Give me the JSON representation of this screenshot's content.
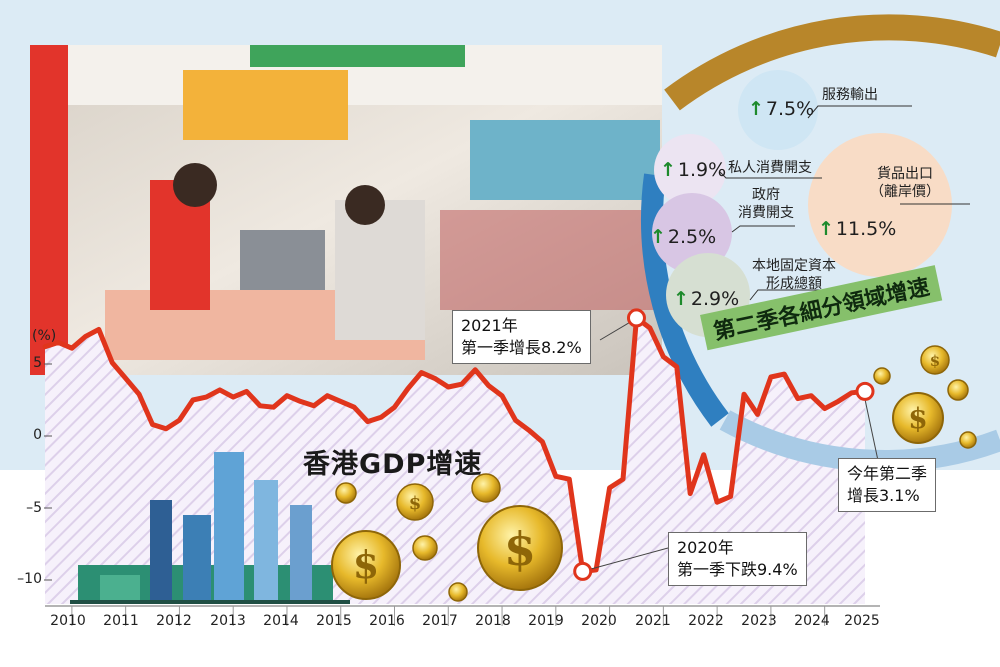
{
  "chart_data": {
    "type": "line",
    "title": "香港GDP增速",
    "ylabel": "(%)",
    "ylim": [
      -11,
      7
    ],
    "yticks": [
      5,
      0,
      -5,
      -10
    ],
    "ytick_labels": [
      "5",
      "0",
      "–5",
      "–10"
    ],
    "xtick_labels": [
      "2010",
      "2011",
      "2012",
      "2013",
      "2014",
      "2015",
      "2016",
      "2017",
      "2018",
      "2019",
      "2020",
      "2021",
      "2022",
      "2023",
      "2024",
      "2025"
    ],
    "line_color": "#e0351c",
    "grid": false,
    "series": [
      {
        "x": [
          2010.0,
          2010.25,
          2010.5,
          2010.75,
          2011.0,
          2011.25,
          2011.5,
          2011.75,
          2012.0,
          2012.25,
          2012.5,
          2012.75,
          2013.0,
          2013.25,
          2013.5,
          2013.75,
          2014.0,
          2014.25,
          2014.5,
          2014.75,
          2015.0,
          2015.25,
          2015.5,
          2015.75,
          2016.0,
          2016.25,
          2016.5,
          2016.75,
          2017.0,
          2017.25,
          2017.5,
          2017.75,
          2018.0,
          2018.25,
          2018.5,
          2018.75,
          2019.0,
          2019.25,
          2019.5,
          2019.75,
          2020.0,
          2020.25,
          2020.5,
          2020.75,
          2021.0,
          2021.25,
          2021.5,
          2021.75,
          2022.0,
          2022.25,
          2022.5,
          2022.75,
          2023.0,
          2023.25,
          2023.5,
          2023.75,
          2024.0,
          2024.25,
          2024.5,
          2024.75,
          2025.0,
          2025.25
        ],
        "values": [
          6.2,
          6.5,
          6.1,
          6.9,
          7.4,
          5.1,
          4.0,
          2.9,
          0.8,
          0.5,
          1.1,
          2.5,
          2.7,
          3.2,
          2.7,
          3.1,
          2.1,
          2.0,
          2.8,
          2.4,
          2.1,
          2.8,
          2.4,
          2.0,
          1.0,
          1.3,
          2.0,
          3.3,
          4.4,
          4.0,
          3.4,
          3.6,
          4.6,
          3.5,
          2.8,
          1.1,
          0.4,
          -0.4,
          -2.8,
          -3.0,
          -9.4,
          -9.3,
          -3.6,
          -3.0,
          8.2,
          7.5,
          5.5,
          4.8,
          -4.0,
          -1.3,
          -4.6,
          -4.2,
          2.9,
          1.5,
          4.1,
          4.3,
          2.6,
          2.8,
          1.9,
          2.4,
          3.0,
          3.1
        ]
      }
    ],
    "highlights": [
      {
        "x": 2021.0,
        "value": 8.2
      },
      {
        "x": 2020.0,
        "value": -9.4
      },
      {
        "x": 2025.25,
        "value": 3.1
      }
    ]
  },
  "annotations": {
    "peak2021": [
      "2021年",
      "第一季增長8.2%"
    ],
    "trough2020": [
      "2020年",
      "第一季下跌9.4%"
    ],
    "latest2025": [
      "今年第二季",
      "增長3.1%"
    ]
  },
  "sectors": {
    "title": "第二季各細分領域增速",
    "items": [
      {
        "name": "服務輸出",
        "value": "7.5%",
        "color": "#cfe6f4"
      },
      {
        "name": "私人消費開支",
        "value": "1.9%",
        "color": "#ece4f2"
      },
      {
        "name": "政府\n消費開支",
        "value": "2.5%",
        "color": "#d8c6e4"
      },
      {
        "name": "本地固定資本\n形成總額",
        "value": "2.9%",
        "color": "#d6dfd2"
      },
      {
        "name": "貨品出口\n（離岸價）",
        "value": "11.5%",
        "color": "#f8dcc6"
      }
    ],
    "arrow_color": "#1d8a2c"
  },
  "colors": {
    "band_top": "#dcebf5",
    "ring_outer": "#b8862a",
    "ring_inner": "#2f7fc0",
    "ring_light": "#a9cbe6"
  }
}
